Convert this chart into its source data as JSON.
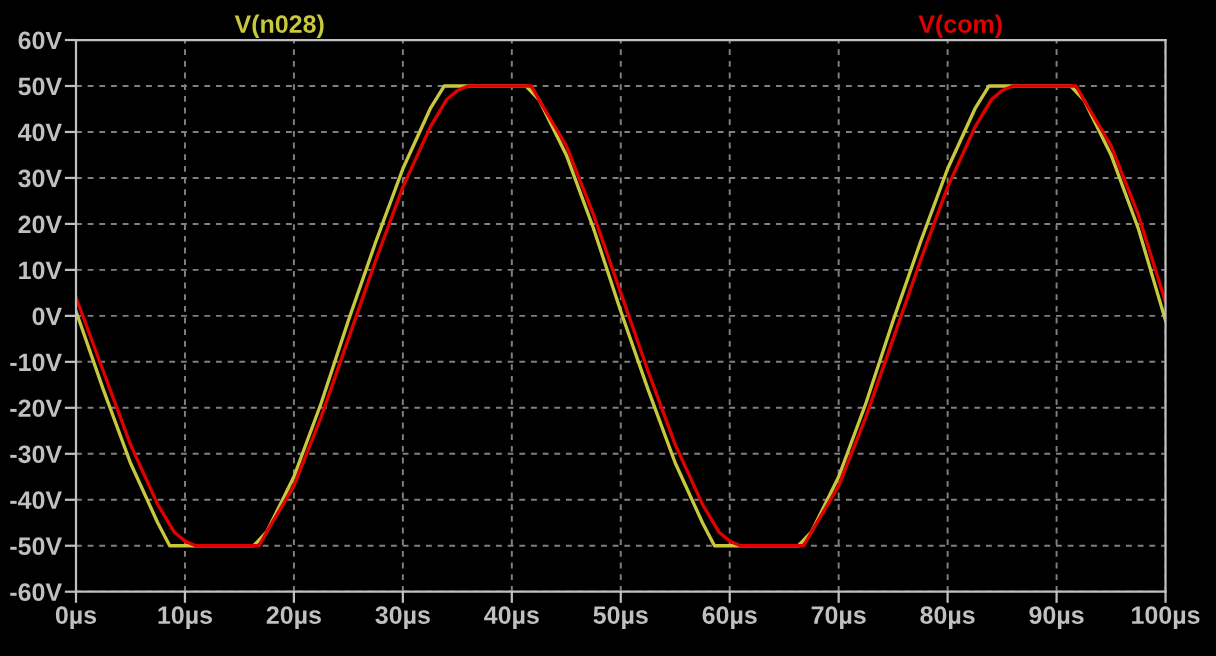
{
  "chart_data": {
    "type": "line",
    "xlim": [
      0,
      100
    ],
    "ylim": [
      -60,
      60
    ],
    "xticks": [
      {
        "value": 0,
        "label": "0µs"
      },
      {
        "value": 10,
        "label": "10µs"
      },
      {
        "value": 20,
        "label": "20µs"
      },
      {
        "value": 30,
        "label": "30µs"
      },
      {
        "value": 40,
        "label": "40µs"
      },
      {
        "value": 50,
        "label": "50µs"
      },
      {
        "value": 60,
        "label": "60µs"
      },
      {
        "value": 70,
        "label": "70µs"
      },
      {
        "value": 80,
        "label": "80µs"
      },
      {
        "value": 90,
        "label": "90µs"
      },
      {
        "value": 100,
        "label": "100µs"
      }
    ],
    "yticks": [
      {
        "value": -60,
        "label": "-60V"
      },
      {
        "value": -50,
        "label": "-50V"
      },
      {
        "value": -40,
        "label": "-40V"
      },
      {
        "value": -30,
        "label": "-30V"
      },
      {
        "value": -20,
        "label": "-20V"
      },
      {
        "value": -10,
        "label": "-10V"
      },
      {
        "value": 0,
        "label": "0V"
      },
      {
        "value": 10,
        "label": "10V"
      },
      {
        "value": 20,
        "label": "20V"
      },
      {
        "value": 30,
        "label": "30V"
      },
      {
        "value": 40,
        "label": "40V"
      },
      {
        "value": 50,
        "label": "50V"
      },
      {
        "value": 60,
        "label": "60V"
      }
    ],
    "grid": true,
    "legend": "top",
    "line_style": "solid",
    "marker": "none",
    "series": [
      {
        "name": "V(n028)",
        "color": "#c8c83c",
        "x": [
          0,
          2.5,
          5,
          7.5,
          8.6,
          16.3,
          17.5,
          20,
          22.5,
          25,
          27.5,
          30,
          32.5,
          33.8,
          41.3,
          42.5,
          45,
          47.5,
          50,
          52.5,
          55,
          57.5,
          58.6,
          66.3,
          67.5,
          70,
          72.5,
          75,
          77.5,
          80,
          82.5,
          83.8,
          91.3,
          92.5,
          95,
          97.5,
          100
        ],
        "values": [
          1,
          -16,
          -32,
          -45,
          -50,
          -50,
          -47,
          -35,
          -19,
          -1,
          16,
          32,
          45,
          50,
          50,
          47,
          35,
          19,
          1,
          -16,
          -32,
          -45,
          -50,
          -50,
          -47,
          -35,
          -19,
          -1,
          16,
          32,
          45,
          50,
          50,
          47,
          35,
          19,
          -1
        ]
      },
      {
        "name": "V(com)",
        "color": "#e00000",
        "x": [
          0,
          2.5,
          5,
          7.5,
          9,
          10,
          11,
          14,
          16.8,
          17.5,
          20,
          22.5,
          25,
          27.5,
          30,
          32.5,
          34,
          35,
          36,
          39,
          41.8,
          42.5,
          45,
          47.5,
          50,
          52.5,
          55,
          57.5,
          59,
          60,
          61,
          64,
          66.8,
          67.5,
          70,
          72.5,
          75,
          77.5,
          80,
          82.5,
          84,
          85,
          86,
          89,
          91.8,
          92.5,
          95,
          97.5,
          100
        ],
        "values": [
          4,
          -12,
          -28,
          -41,
          -47,
          -49,
          -50,
          -50,
          -50,
          -47,
          -37,
          -22,
          -5,
          12,
          28,
          41,
          47,
          49,
          50,
          50,
          50,
          47,
          37,
          22,
          5,
          -12,
          -28,
          -41,
          -47,
          -49,
          -50,
          -50,
          -50,
          -47,
          -37,
          -22,
          -5,
          12,
          28,
          41,
          47,
          49,
          50,
          50,
          50,
          47,
          37,
          22,
          3
        ]
      }
    ]
  }
}
